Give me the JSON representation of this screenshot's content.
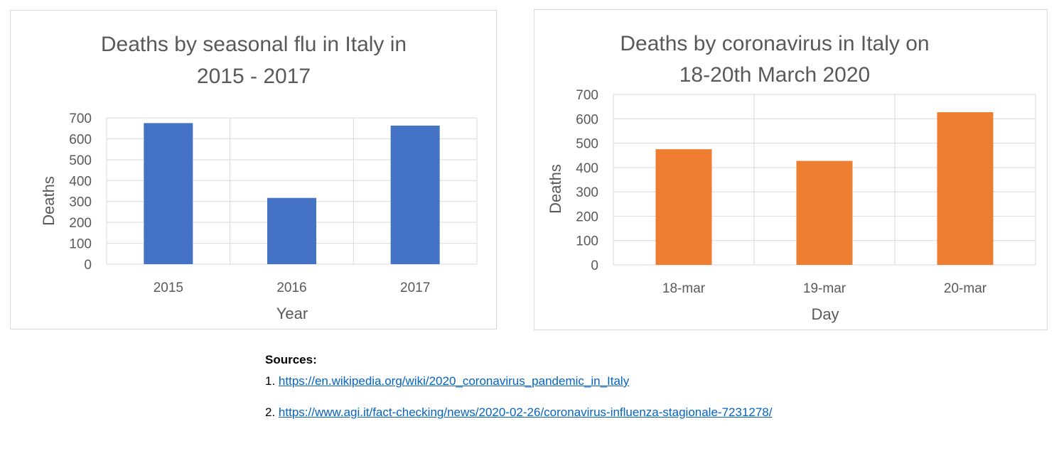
{
  "chart_data": [
    {
      "type": "bar",
      "title": "Deaths by seasonal flu in Italy in",
      "title_line2": "2015 - 2017",
      "xlabel": "Year",
      "ylabel": "Deaths",
      "categories": [
        "2015",
        "2016",
        "2017"
      ],
      "values": [
        675,
        317,
        663
      ],
      "ylim": [
        0,
        700
      ],
      "yticks": [
        "0",
        "100",
        "200",
        "300",
        "400",
        "500",
        "600",
        "700"
      ],
      "grid": true,
      "legend": "none",
      "bar_color": "#4472c4"
    },
    {
      "type": "bar",
      "title": "Deaths by coronavirus in Italy on",
      "title_line2": "18-20th March 2020",
      "xlabel": "Day",
      "ylabel": "Deaths",
      "categories": [
        "18-mar",
        "19-mar",
        "20-mar"
      ],
      "values": [
        475,
        427,
        627
      ],
      "ylim": [
        0,
        700
      ],
      "yticks": [
        "0",
        "100",
        "200",
        "300",
        "400",
        "500",
        "600",
        "700"
      ],
      "grid": true,
      "legend": "none",
      "bar_color": "#ed7d31"
    }
  ],
  "sources": {
    "heading": "Sources:",
    "items": [
      {
        "number": "1.",
        "url": "https://en.wikipedia.org/wiki/2020_coronavirus_pandemic_in_Italy"
      },
      {
        "number": "2.",
        "url": "https://www.agi.it/fact-checking/news/2020-02-26/coronavirus-influenza-stagionale-7231278/"
      }
    ]
  }
}
